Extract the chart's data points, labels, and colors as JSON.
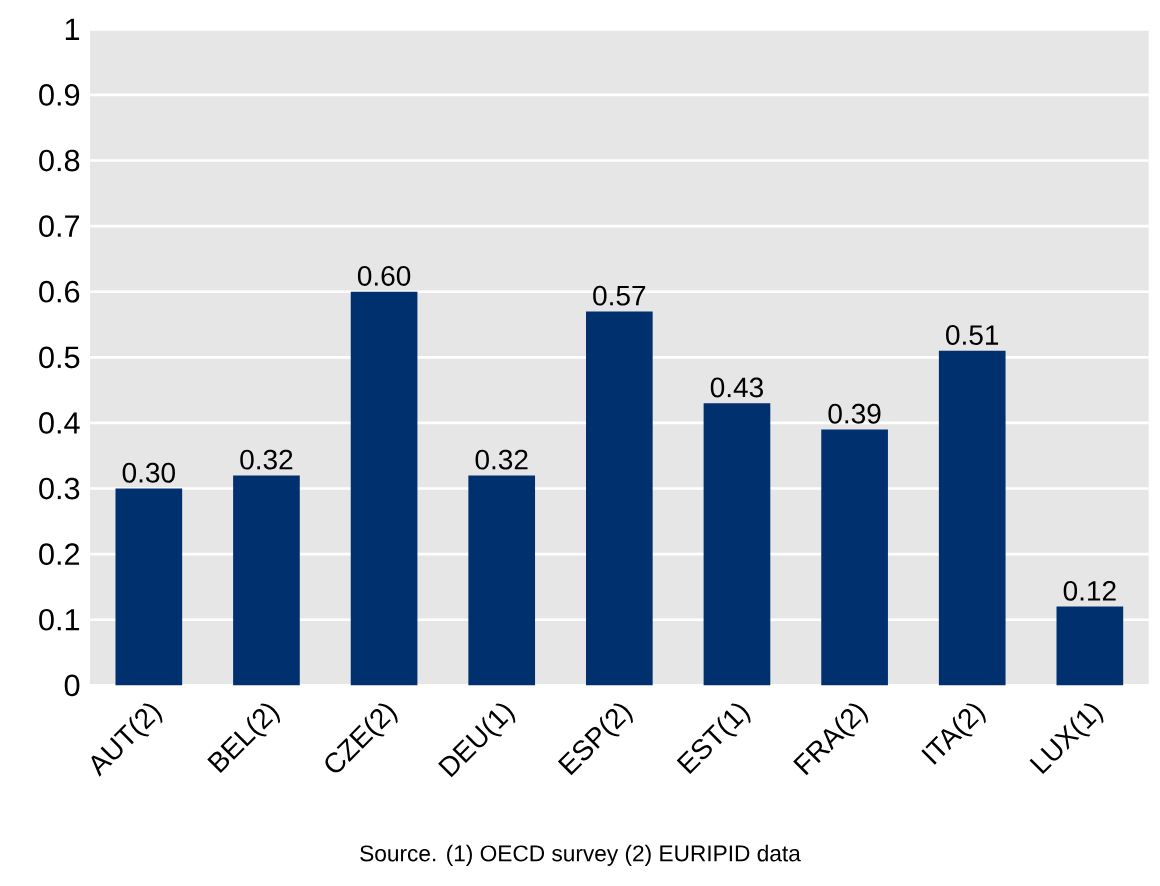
{
  "chart_data": {
    "type": "bar",
    "categories": [
      "AUT(2)",
      "BEL(2)",
      "CZE(2)",
      "DEU(1)",
      "ESP(2)",
      "EST(1)",
      "FRA(2)",
      "ITA(2)",
      "LUX(1)"
    ],
    "values": [
      0.3,
      0.32,
      0.6,
      0.32,
      0.57,
      0.43,
      0.39,
      0.51,
      0.12
    ],
    "value_labels": [
      "0.30",
      "0.32",
      "0.60",
      "0.32",
      "0.57",
      "0.43",
      "0.39",
      "0.51",
      "0.12"
    ],
    "color": "#00306e",
    "ylim": [
      0,
      1
    ],
    "yticks": [
      0,
      0.1,
      0.2,
      0.3,
      0.4,
      0.5,
      0.6,
      0.7,
      0.8,
      0.9,
      1
    ],
    "grid": "y",
    "annotations": [
      "Source. (1) OECD survey (2) EURIPID data"
    ]
  }
}
